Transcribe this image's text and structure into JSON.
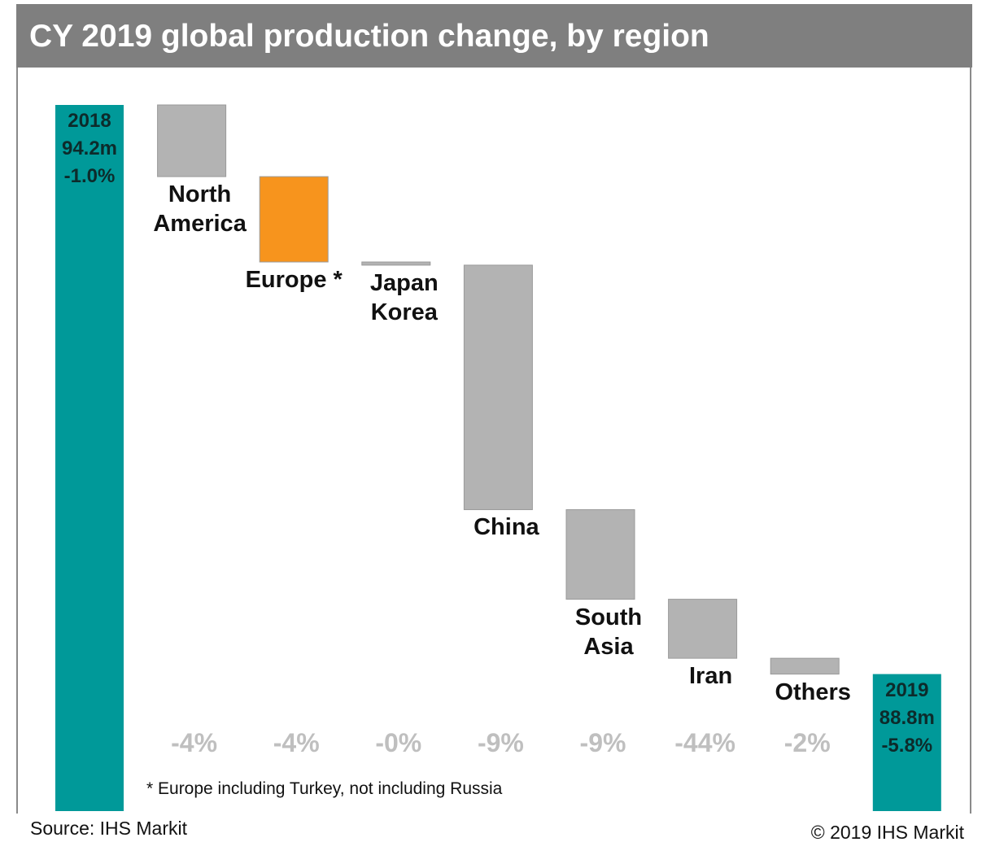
{
  "chart_data": {
    "type": "waterfall",
    "title": "CY 2019 global production change, by region",
    "ylim": [
      87.5,
      94.2
    ],
    "totals": [
      {
        "label": "2018",
        "value": 94.2,
        "value_label": "94.2m",
        "change_label": "-1.0%",
        "color": "#009999"
      },
      {
        "label": "2019",
        "value": 88.8,
        "value_label": "88.8m",
        "change_label": "-5.8%",
        "color": "#009999"
      }
    ],
    "categories": [
      "North America",
      "Europe *",
      "Japan Korea",
      "China",
      "South Asia",
      "Iran",
      "Others"
    ],
    "values": [
      -0.68,
      -0.81,
      -0.03,
      -2.32,
      -0.85,
      -0.56,
      -0.15
    ],
    "colors": [
      "#b3b3b3",
      "#f7941d",
      "#b3b3b3",
      "#b3b3b3",
      "#b3b3b3",
      "#b3b3b3",
      "#b3b3b3"
    ],
    "pct_labels": [
      "-4%",
      "-4%",
      "-0%",
      "-9%",
      "-9%",
      "-44%",
      "-2%"
    ],
    "footnote": "* Europe including Turkey, not including Russia"
  },
  "source": "Source: IHS Markit",
  "copyright": "© 2019 IHS Markit"
}
